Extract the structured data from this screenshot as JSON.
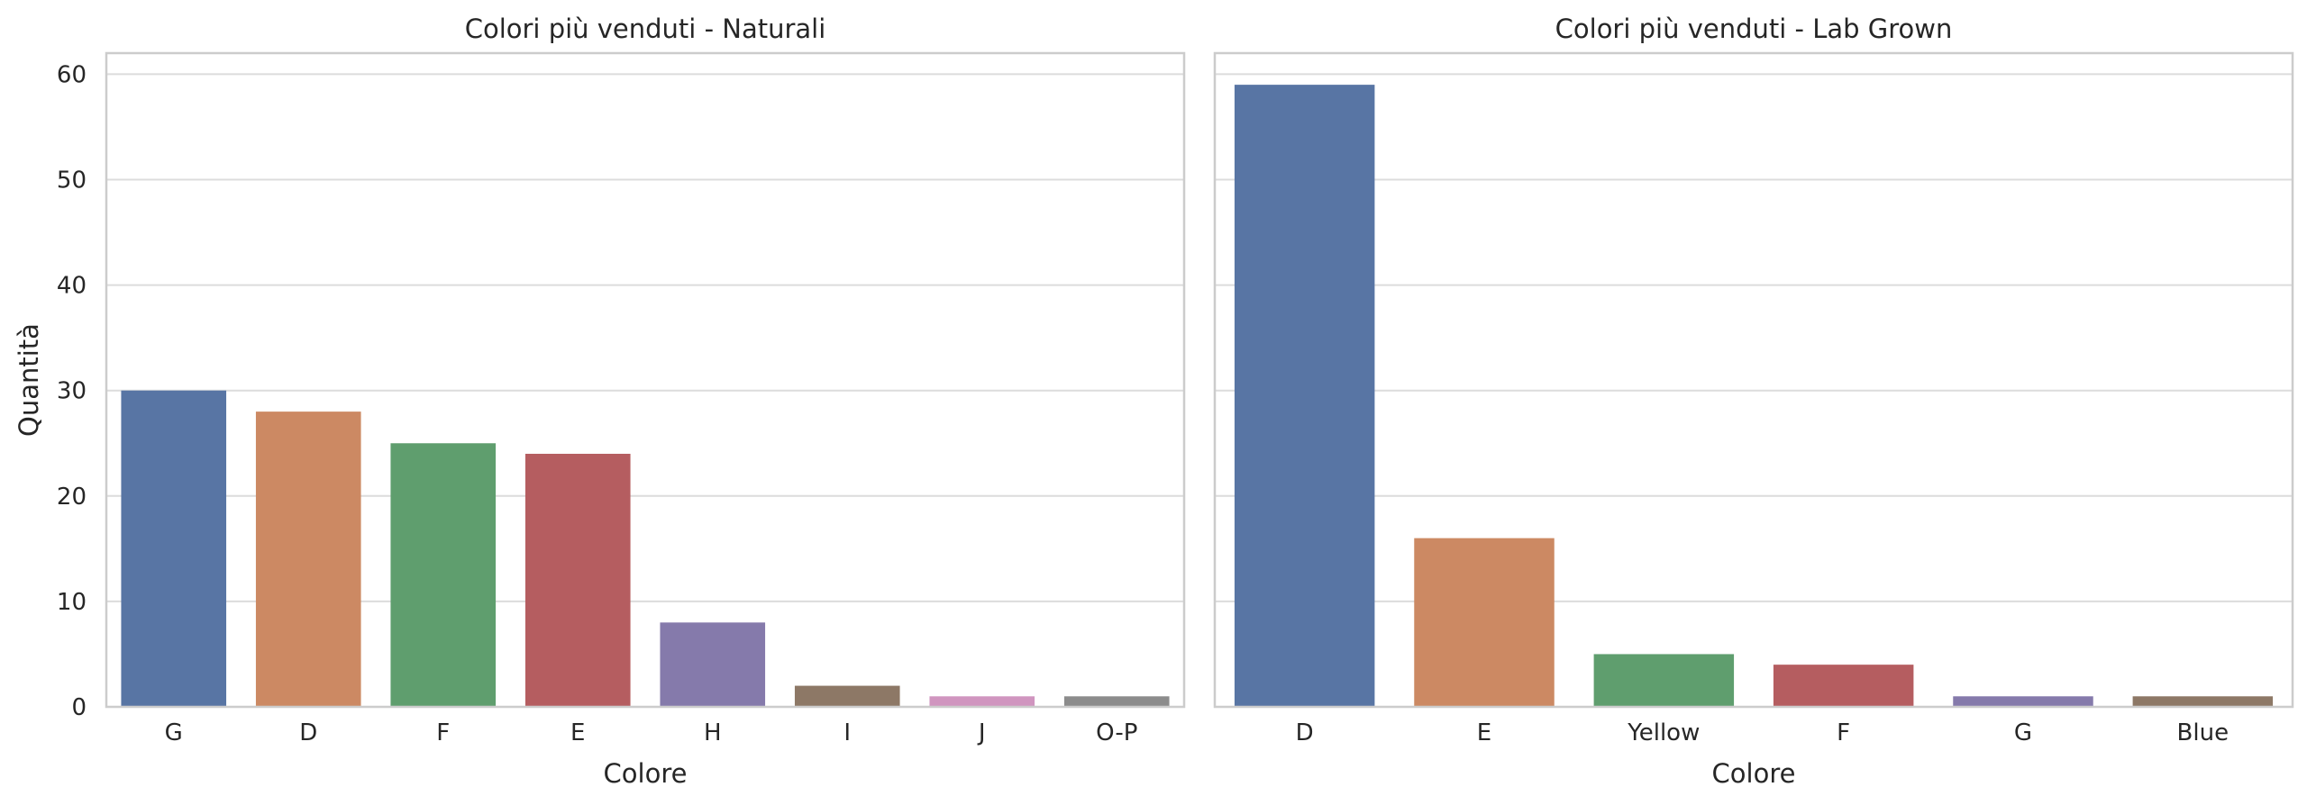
{
  "chart_data": [
    {
      "type": "bar",
      "title": "Colori più venduti - Naturali",
      "xlabel": "Colore",
      "ylabel": "Quantità",
      "categories": [
        "G",
        "D",
        "F",
        "E",
        "H",
        "I",
        "J",
        "O-P"
      ],
      "values": [
        30,
        28,
        25,
        24,
        8,
        2,
        1,
        1
      ],
      "colors": [
        "#5875a4",
        "#cc8963",
        "#5f9e6e",
        "#b55d60",
        "#857aab",
        "#8d7866",
        "#d095bf",
        "#8c8c8c"
      ],
      "ylim": [
        0,
        62
      ],
      "yticks": [
        0,
        10,
        20,
        30,
        40,
        50,
        60
      ],
      "grid": true
    },
    {
      "type": "bar",
      "title": "Colori più venduti - Lab Grown",
      "xlabel": "Colore",
      "ylabel": "",
      "categories": [
        "D",
        "E",
        "Yellow",
        "F",
        "G",
        "Blue"
      ],
      "values": [
        59,
        16,
        5,
        4,
        1,
        1
      ],
      "colors": [
        "#5875a4",
        "#cc8963",
        "#5f9e6e",
        "#b55d60",
        "#857aab",
        "#8d7866"
      ],
      "ylim": [
        0,
        62
      ],
      "yticks": [
        0,
        10,
        20,
        30,
        40,
        50,
        60
      ],
      "grid": true
    }
  ]
}
